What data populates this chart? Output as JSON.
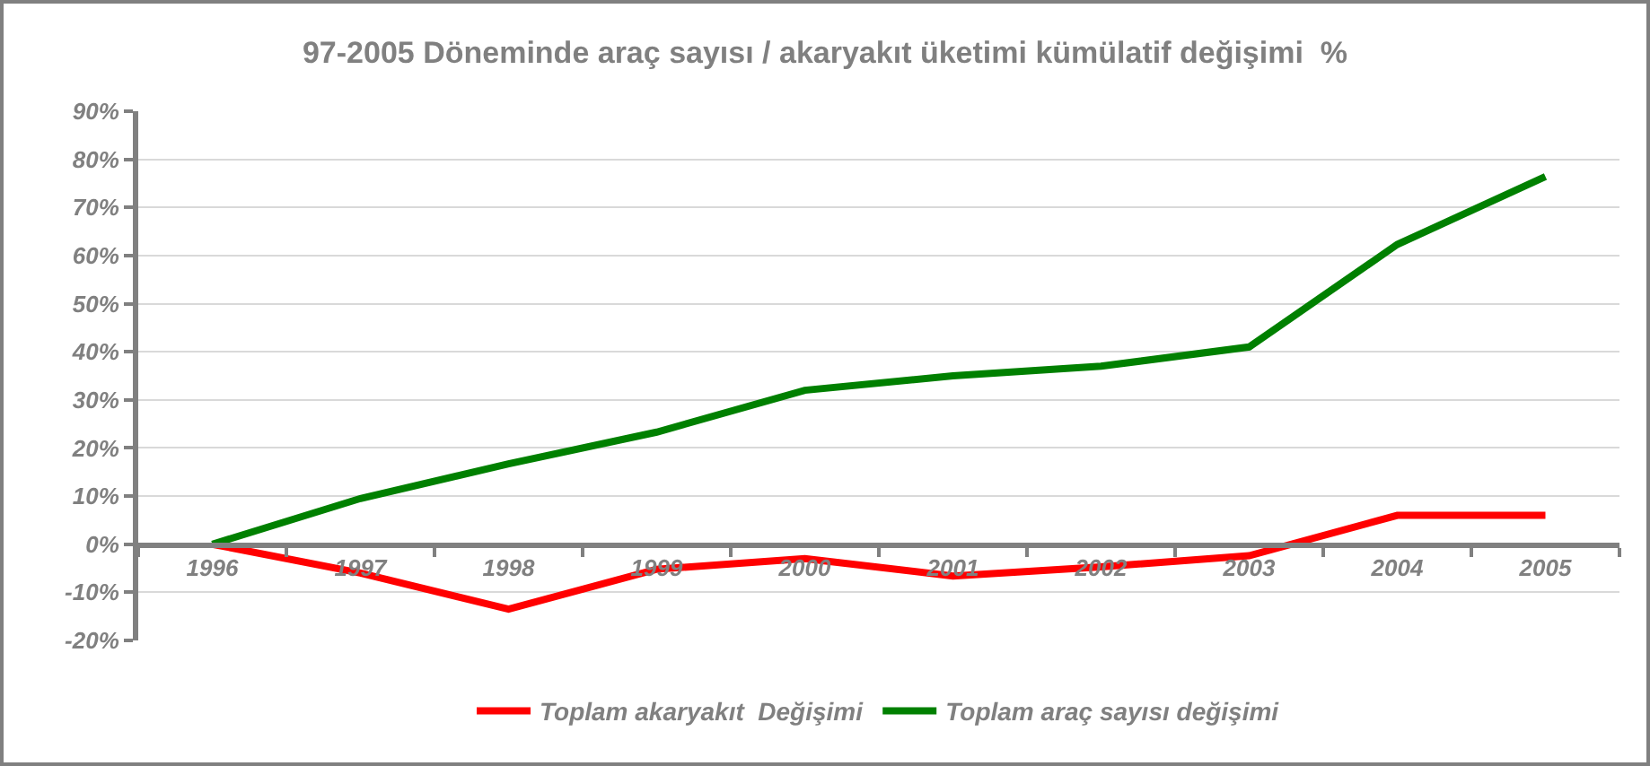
{
  "chart_data": {
    "type": "line",
    "title": "97-2005 Döneminde araç sayısı / akaryakıt üketimi kümülatif değişimi  %",
    "categories": [
      "1996",
      "1997",
      "1998",
      "1999",
      "2000",
      "2001",
      "2002",
      "2003",
      "2004",
      "2005"
    ],
    "series": [
      {
        "name": "Toplam akaryakıt  Değişimi",
        "color": "#ff0000",
        "values": [
          0,
          -6,
          -13.5,
          -5.2,
          -3,
          -6.6,
          -4.7,
          -2.4,
          6,
          6
        ]
      },
      {
        "name": "Toplam araç sayısı değişimi",
        "color": "#008000",
        "values": [
          0,
          9.5,
          16.7,
          23.3,
          32,
          35,
          37,
          41,
          62.3,
          76.4
        ]
      }
    ],
    "ylim": [
      -20,
      90
    ],
    "yticks": [
      {
        "value": -20,
        "label": "-20%"
      },
      {
        "value": -10,
        "label": "-10%"
      },
      {
        "value": 0,
        "label": "0%"
      },
      {
        "value": 10,
        "label": "10%"
      },
      {
        "value": 20,
        "label": "20%"
      },
      {
        "value": 30,
        "label": "30%"
      },
      {
        "value": 40,
        "label": "40%"
      },
      {
        "value": 50,
        "label": "50%"
      },
      {
        "value": 60,
        "label": "60%"
      },
      {
        "value": 70,
        "label": "70%"
      },
      {
        "value": 80,
        "label": "80%"
      },
      {
        "value": 90,
        "label": "90%"
      }
    ],
    "grid": "y",
    "legend": "bottom",
    "marker": "none",
    "line_style": "solid"
  }
}
